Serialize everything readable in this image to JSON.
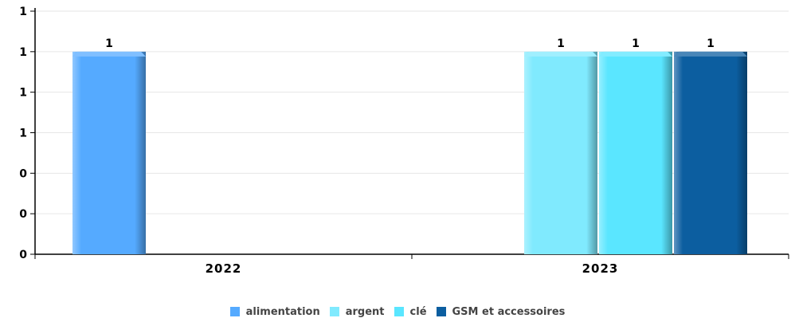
{
  "chart_data": {
    "type": "bar",
    "categories": [
      "2022",
      "2023"
    ],
    "series": [
      {
        "name": "alimentation",
        "color": "#55aaff",
        "values": [
          1,
          null
        ]
      },
      {
        "name": "argent",
        "color": "#80eafe",
        "values": [
          null,
          1
        ]
      },
      {
        "name": "clé",
        "color": "#5ae6ff",
        "values": [
          null,
          1
        ]
      },
      {
        "name": "GSM et accessoires",
        "color": "#0c5ea0",
        "values": [
          null,
          1
        ]
      }
    ],
    "y_ticks": [
      "0",
      "0",
      "0",
      "1",
      "1",
      "1",
      "1"
    ],
    "ylim": [
      0,
      1.2
    ],
    "grid": true,
    "legend_position": "bottom"
  }
}
